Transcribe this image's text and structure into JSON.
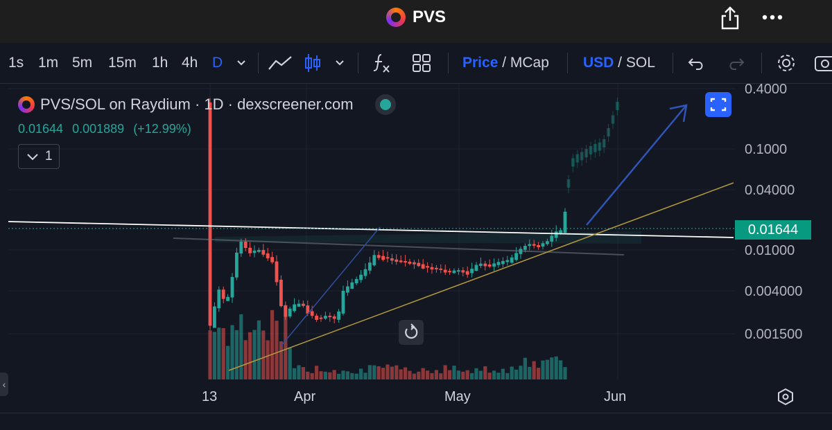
{
  "app": {
    "title": "PVS"
  },
  "toolbar": {
    "intervals": [
      "1s",
      "1m",
      "5m",
      "15m",
      "1h",
      "4h",
      "D"
    ],
    "active_interval": "D",
    "price_label": "Price",
    "price_sep": " / ",
    "mcap_label": "MCap",
    "usd_label": "USD",
    "sol_label": "SOL"
  },
  "legend": {
    "title": "PVS/SOL on Raydium · 1D · dexscreener.com",
    "price": "0.01644",
    "change": "0.001889",
    "change_pct": "(+12.99%)",
    "collapse_count": "1"
  },
  "axis": {
    "price_labels": [
      "0.4000",
      "0.1000",
      "0.04000",
      "0.01000",
      "0.004000",
      "0.001500"
    ],
    "current_price": "0.01644",
    "date_labels": [
      "13",
      "Apr",
      "May",
      "Jun"
    ]
  },
  "colors": {
    "up": "#26a69a",
    "down": "#ef5350",
    "accent": "#2962ff",
    "background": "#131722"
  }
}
